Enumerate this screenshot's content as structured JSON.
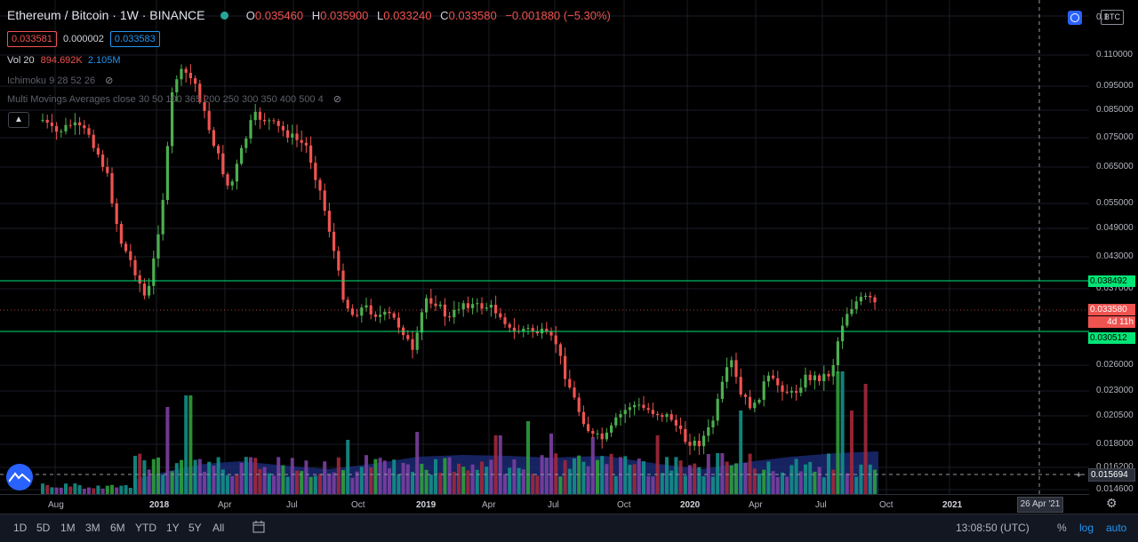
{
  "legend": {
    "symbol": "Ethereum / Bitcoin · 1W · BINANCE",
    "open_k": "O",
    "open_v": "0.035460",
    "high_k": "H",
    "high_v": "0.035900",
    "low_k": "L",
    "low_v": "0.033240",
    "close_k": "C",
    "close_v": "0.033580",
    "change_v": "−0.001880 (−5.30%)"
  },
  "price_pills": {
    "bid": "0.033581",
    "spread": "0.000002",
    "ask": "0.033583"
  },
  "indicators": {
    "vol_name": "Vol 20",
    "vol_v1": "894.692K",
    "vol_v2": "2.105M",
    "ichimoku": "Ichimoku 9 28 52 26",
    "mma": "Multi Movings Averages close 30 50 100 365 200 250 300 350 400 500 4"
  },
  "price_axis": {
    "labels": [
      "0.110000",
      "0.095000",
      "0.085000",
      "0.075000",
      "0.065000",
      "0.055000",
      "0.049000",
      "0.043000",
      "0.037000",
      "0.026000",
      "0.023000",
      "0.020500",
      "0.018000",
      "0.016200",
      "0.014600"
    ],
    "top_partial": "0.1",
    "res_tag": "0.038492",
    "cur_tag": "0.033580",
    "countdown": "4d 11h",
    "sup_tag": "0.030512",
    "cross_tag": "0.015694"
  },
  "time_axis": {
    "labels": [
      "Aug",
      "2018",
      "Apr",
      "Jul",
      "Oct",
      "2019",
      "Apr",
      "Jul",
      "Oct",
      "2020",
      "Apr",
      "Jul",
      "Oct",
      "2021"
    ],
    "cursor_date": "26 Apr '21"
  },
  "toolbar": {
    "ranges": [
      "1D",
      "5D",
      "1M",
      "3M",
      "6M",
      "YTD",
      "1Y",
      "5Y",
      "All"
    ],
    "clock": "13:08:50 (UTC)",
    "percent": "%",
    "log": "log",
    "auto": "auto"
  },
  "btc_label": "BTC",
  "colors": {
    "up": "#26a69a",
    "up_bright": "#4caf50",
    "down": "#ef5350",
    "level": "#00e676",
    "bg": "#000000"
  }
}
